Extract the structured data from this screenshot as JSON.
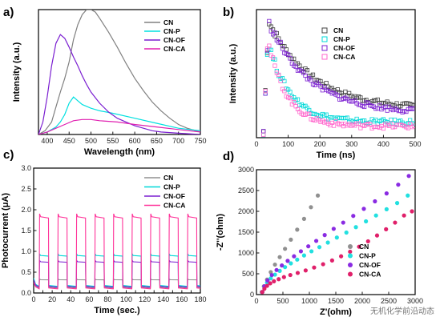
{
  "watermark": "无机化学前沿动态",
  "chart_data": [
    {
      "type": "line",
      "panel": "a)",
      "xlabel": "Wavelength (nm)",
      "ylabel": "Intensity (a.u.)",
      "xlim": [
        380,
        750
      ],
      "xticks": [
        400,
        450,
        500,
        550,
        600,
        650,
        700,
        750
      ],
      "ylim": [
        0,
        1
      ],
      "yticks": [],
      "legend_position": "top-right",
      "series": [
        {
          "name": "CN",
          "color": "#808080",
          "x": [
            380,
            395,
            410,
            420,
            430,
            440,
            450,
            460,
            470,
            480,
            490,
            500,
            510,
            520,
            540,
            560,
            580,
            600,
            620,
            640,
            660,
            680,
            700,
            720,
            750
          ],
          "y": [
            0.0,
            0.03,
            0.1,
            0.22,
            0.34,
            0.45,
            0.58,
            0.76,
            0.88,
            0.96,
            1.0,
            1.0,
            0.98,
            0.93,
            0.82,
            0.7,
            0.57,
            0.45,
            0.35,
            0.26,
            0.19,
            0.13,
            0.08,
            0.05,
            0.02
          ]
        },
        {
          "name": "CN-P",
          "color": "#00e0e0",
          "x": [
            380,
            400,
            420,
            430,
            440,
            450,
            460,
            470,
            480,
            500,
            520,
            550,
            600,
            650,
            700,
            750
          ],
          "y": [
            0.0,
            0.02,
            0.06,
            0.1,
            0.16,
            0.25,
            0.3,
            0.27,
            0.24,
            0.21,
            0.19,
            0.17,
            0.13,
            0.09,
            0.05,
            0.03
          ]
        },
        {
          "name": "CN-OF",
          "color": "#7b1fd1",
          "x": [
            380,
            390,
            400,
            410,
            420,
            430,
            440,
            450,
            460,
            470,
            480,
            490,
            500,
            520,
            540,
            560,
            580,
            600,
            620,
            640,
            660,
            700,
            750
          ],
          "y": [
            0.0,
            0.1,
            0.3,
            0.55,
            0.73,
            0.8,
            0.77,
            0.7,
            0.62,
            0.55,
            0.47,
            0.4,
            0.34,
            0.25,
            0.18,
            0.13,
            0.1,
            0.07,
            0.05,
            0.03,
            0.02,
            0.01,
            0.0
          ]
        },
        {
          "name": "CN-CA",
          "color": "#e020b0",
          "x": [
            380,
            400,
            420,
            440,
            460,
            480,
            500,
            520,
            560,
            600,
            650,
            700,
            750
          ],
          "y": [
            0.0,
            0.02,
            0.05,
            0.08,
            0.11,
            0.12,
            0.12,
            0.11,
            0.1,
            0.08,
            0.06,
            0.04,
            0.02
          ]
        }
      ]
    },
    {
      "type": "scatter",
      "panel": "b)",
      "xlabel": "Time (ns)",
      "ylabel": "Intensity (a.u.)",
      "xlim": [
        0,
        500
      ],
      "xticks": [
        0,
        100,
        200,
        300,
        400,
        500
      ],
      "ylim": [
        0,
        1
      ],
      "yticks": [],
      "marker": "square-open",
      "legend_position": "top-right",
      "series": [
        {
          "name": "CN",
          "color": "#404040",
          "tau": 140,
          "floor": 0.22,
          "amp": 0.68,
          "peak": 0.95
        },
        {
          "name": "CN-P",
          "color": "#00d8d8",
          "tau": 70,
          "floor": 0.12,
          "amp": 0.6,
          "peak": 0.9
        },
        {
          "name": "CN-OF",
          "color": "#7b1fd1",
          "tau": 130,
          "floor": 0.19,
          "amp": 0.7,
          "peak": 0.92
        },
        {
          "name": "CN-CA",
          "color": "#ff66cc",
          "tau": 60,
          "floor": 0.09,
          "amp": 0.62,
          "peak": 1.0
        }
      ]
    },
    {
      "type": "line",
      "panel": "c)",
      "xlabel": "Time (sec.)",
      "ylabel": "Photocurrent (μA)",
      "xlim": [
        0,
        180
      ],
      "xticks": [
        0,
        10,
        20,
        30,
        40,
        50,
        60,
        70,
        80,
        90,
        100,
        110,
        120,
        130,
        140,
        150,
        160,
        170,
        180
      ],
      "xtick_labels": [
        "0",
        "20",
        "40",
        "60",
        "80",
        "100",
        "120",
        "140",
        "160",
        "180"
      ],
      "ylim": [
        0.0,
        3.0
      ],
      "yticks": [
        0.0,
        0.5,
        1.0,
        1.5,
        2.0,
        2.5,
        3.0
      ],
      "ytick_labels": [
        "0.0",
        "0.5",
        "1.0",
        "1.5",
        "2.0",
        "2.5",
        "3.0"
      ],
      "legend_position": "top-right",
      "on_off_period_s": 20,
      "first_on_s": 2,
      "series": [
        {
          "name": "CN",
          "color": "#909090",
          "dark": 0.12,
          "light": 0.32
        },
        {
          "name": "CN-P",
          "color": "#00d8d8",
          "dark": 0.16,
          "light": 0.9
        },
        {
          "name": "CN-OF",
          "color": "#7b1fd1",
          "dark": 0.14,
          "light": 0.75
        },
        {
          "name": "CN-CA",
          "color": "#ff3399",
          "dark": 0.1,
          "light": 1.83
        }
      ]
    },
    {
      "type": "scatter",
      "panel": "d)",
      "xlabel": "Z'(ohm)",
      "ylabel": "-Z''(ohm)",
      "xlim": [
        0,
        3000
      ],
      "xticks": [
        0,
        500,
        1000,
        1500,
        2000,
        2500,
        3000
      ],
      "xtick_labels": [
        "0",
        "500",
        "1000",
        "1500",
        "2000",
        "2500",
        "3000"
      ],
      "ylim": [
        0,
        3000
      ],
      "yticks": [
        0,
        500,
        1000,
        1500,
        2000,
        2500,
        3000
      ],
      "ytick_labels": [
        "0",
        "500",
        "1000",
        "1500",
        "2000",
        "2500",
        "3000"
      ],
      "marker": "circle-filled",
      "legend_position": "bottom-right",
      "series": [
        {
          "name": "CN",
          "color": "#909090",
          "x": [
            100,
            140,
            200,
            270,
            350,
            440,
            540,
            650,
            770,
            900,
            1030,
            1160
          ],
          "y": [
            60,
            200,
            360,
            540,
            720,
            900,
            1100,
            1320,
            1560,
            1820,
            2100,
            2380
          ]
        },
        {
          "name": "CN-P",
          "color": "#22e0e0",
          "x": [
            110,
            150,
            200,
            270,
            350,
            440,
            540,
            650,
            770,
            900,
            1040,
            1190,
            1350,
            1520,
            1700,
            1880,
            2070,
            2260,
            2460,
            2660,
            2860
          ],
          "y": [
            60,
            180,
            290,
            390,
            480,
            570,
            660,
            750,
            840,
            940,
            1040,
            1140,
            1250,
            1370,
            1490,
            1620,
            1760,
            1900,
            2050,
            2200,
            2380
          ]
        },
        {
          "name": "CN-OF",
          "color": "#8a2be2",
          "x": [
            110,
            150,
            210,
            290,
            380,
            480,
            590,
            710,
            840,
            980,
            1130,
            1290,
            1460,
            1640,
            1830,
            2030,
            2240,
            2460,
            2680,
            2880
          ],
          "y": [
            60,
            200,
            340,
            470,
            590,
            700,
            810,
            920,
            1040,
            1160,
            1290,
            1430,
            1580,
            1730,
            1890,
            2060,
            2240,
            2430,
            2640,
            2850
          ]
        },
        {
          "name": "CN-CA",
          "color": "#e0206a",
          "x": [
            110,
            150,
            200,
            260,
            330,
            420,
            520,
            640,
            780,
            930,
            1090,
            1260,
            1430,
            1600,
            1770,
            1940,
            2110,
            2280,
            2450,
            2620,
            2790,
            2940
          ],
          "y": [
            60,
            140,
            210,
            270,
            320,
            370,
            420,
            470,
            520,
            580,
            650,
            730,
            820,
            920,
            1030,
            1150,
            1280,
            1420,
            1570,
            1730,
            1900,
            2000
          ]
        }
      ]
    }
  ]
}
